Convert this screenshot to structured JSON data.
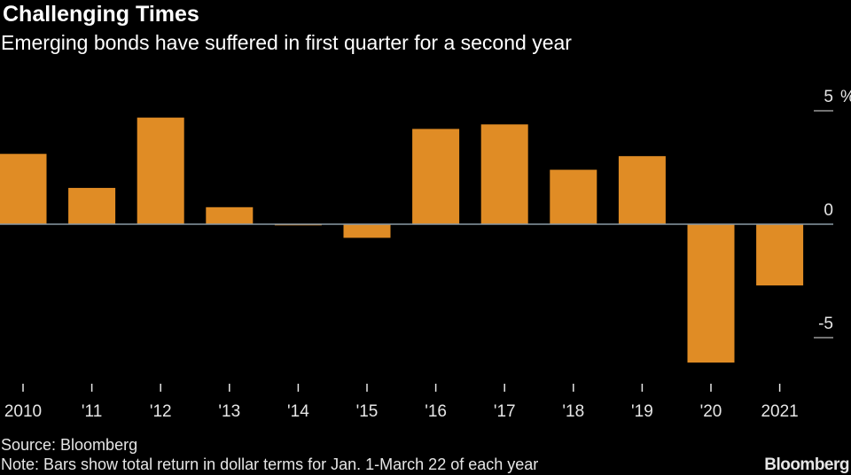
{
  "header": {
    "title": "Challenging Times",
    "subtitle": "Emerging bonds have suffered in first quarter for a second year"
  },
  "footer": {
    "source": "Source: Bloomberg",
    "note": "Note: Bars show total return in dollar terms for Jan. 1-March 22 of each year",
    "brand": "Bloomberg"
  },
  "colors": {
    "bar": "#e08c25",
    "background": "#000000",
    "zero_line": "#8a9aa6",
    "text": "#e6e6e6"
  },
  "chart_data": {
    "type": "bar",
    "title": "Challenging Times",
    "subtitle": "Emerging bonds have suffered in first quarter for a second year",
    "categories": [
      "2010",
      "'11",
      "'12",
      "'13",
      "'14",
      "'15",
      "'16",
      "'17",
      "'18",
      "'19",
      "'20",
      "2021"
    ],
    "values": [
      3.1,
      1.6,
      4.7,
      0.75,
      -0.05,
      -0.6,
      4.2,
      4.4,
      2.4,
      3.0,
      -6.1,
      -2.7
    ],
    "ylim": [
      -6.5,
      5.5
    ],
    "y_ticks": [
      5,
      0,
      -5
    ],
    "y_tick_labels": [
      "5",
      "0",
      "-5"
    ],
    "y_unit": "%",
    "xlabel": "",
    "ylabel": "",
    "grid": false,
    "legend": "none"
  }
}
